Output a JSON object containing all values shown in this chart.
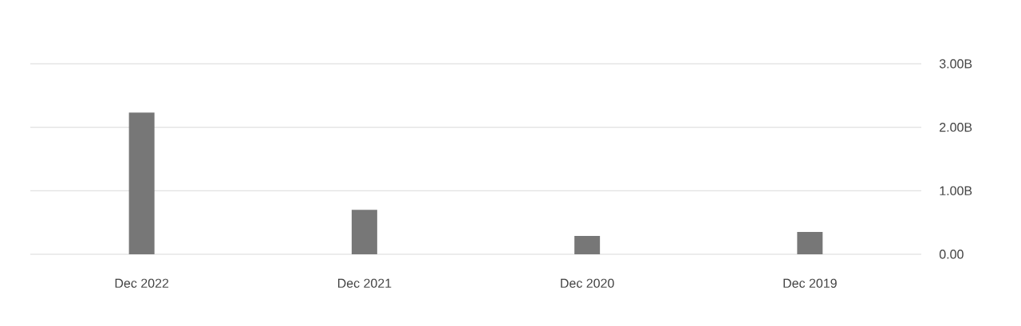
{
  "chart_data": {
    "type": "bar",
    "categories": [
      "Dec 2022",
      "Dec 2021",
      "Dec 2020",
      "Dec 2019"
    ],
    "values": [
      2.23,
      0.7,
      0.29,
      0.35
    ],
    "color": "#777777",
    "ylim": [
      0,
      3
    ],
    "yticks": [
      {
        "value": 0,
        "label": "0.00"
      },
      {
        "value": 1,
        "label": "1.00B"
      },
      {
        "value": 2,
        "label": "2.00B"
      },
      {
        "value": 3,
        "label": "3.00B"
      }
    ],
    "grid": "y"
  }
}
